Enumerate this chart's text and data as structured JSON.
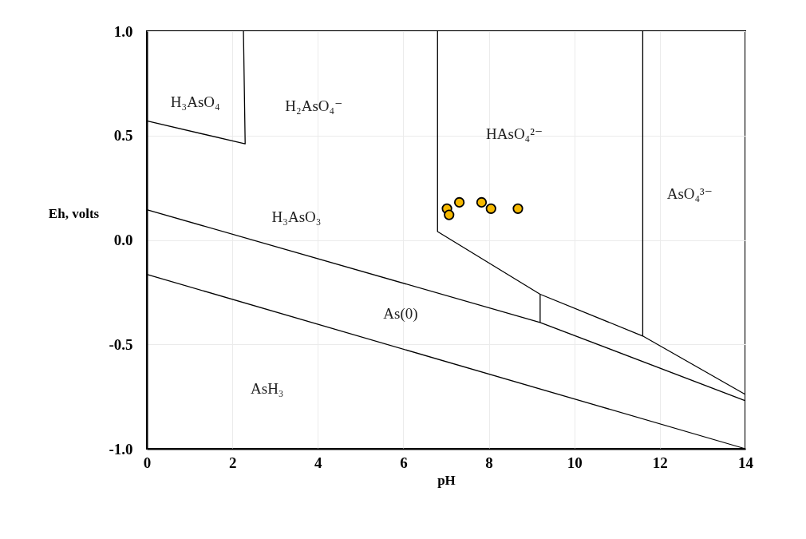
{
  "chart_data": {
    "type": "line",
    "xlabel": "pH",
    "ylabel": "Eh,\nvolts",
    "xlim": [
      0,
      14
    ],
    "xticks": [
      0,
      2,
      4,
      6,
      8,
      10,
      12,
      14
    ],
    "ylim": [
      -1,
      1
    ],
    "yticks": [
      {
        "value": -1,
        "label": "-1.0"
      },
      -0.5,
      {
        "value": 0,
        "label": "0.0"
      },
      0.5,
      {
        "value": 1,
        "label": "1.0"
      }
    ],
    "grid": true,
    "series": [
      {
        "color": "#000000",
        "x": [
          0,
          2.3,
          2.26
        ],
        "values": [
          0.57,
          0.46,
          1.0
        ]
      },
      {
        "color": "#000000",
        "x": [
          0,
          9.2,
          14
        ],
        "values": [
          0.145,
          -0.395,
          -0.77
        ]
      },
      {
        "color": "#000000",
        "x": [
          0,
          14
        ],
        "values": [
          -0.165,
          -1.0
        ]
      },
      {
        "color": "#000000",
        "x": [
          6.8,
          6.8,
          9.2,
          11.6,
          14
        ],
        "values": [
          1.0,
          0.04,
          -0.26,
          -0.46,
          -0.74
        ]
      },
      {
        "color": "#000000",
        "x": [
          9.2,
          9.2
        ],
        "values": [
          -0.26,
          -0.395
        ]
      },
      {
        "color": "#000000",
        "x": [
          11.6,
          11.6
        ],
        "values": [
          1.0,
          -0.46
        ]
      },
      {
        "type": "scatter",
        "color": "#f5b800",
        "marker": "circle",
        "x": [
          7.02,
          7.07,
          7.31,
          7.83,
          8.05,
          8.68
        ],
        "values": [
          0.15,
          0.12,
          0.18,
          0.18,
          0.15,
          0.15
        ]
      }
    ],
    "annotations": [
      "H₃AsO₄",
      "H₂AsO₄⁻",
      "HAsO₄²⁻",
      "AsO₄³⁻",
      "H₃AsO₃",
      "As(0)",
      "AsH₃"
    ]
  }
}
